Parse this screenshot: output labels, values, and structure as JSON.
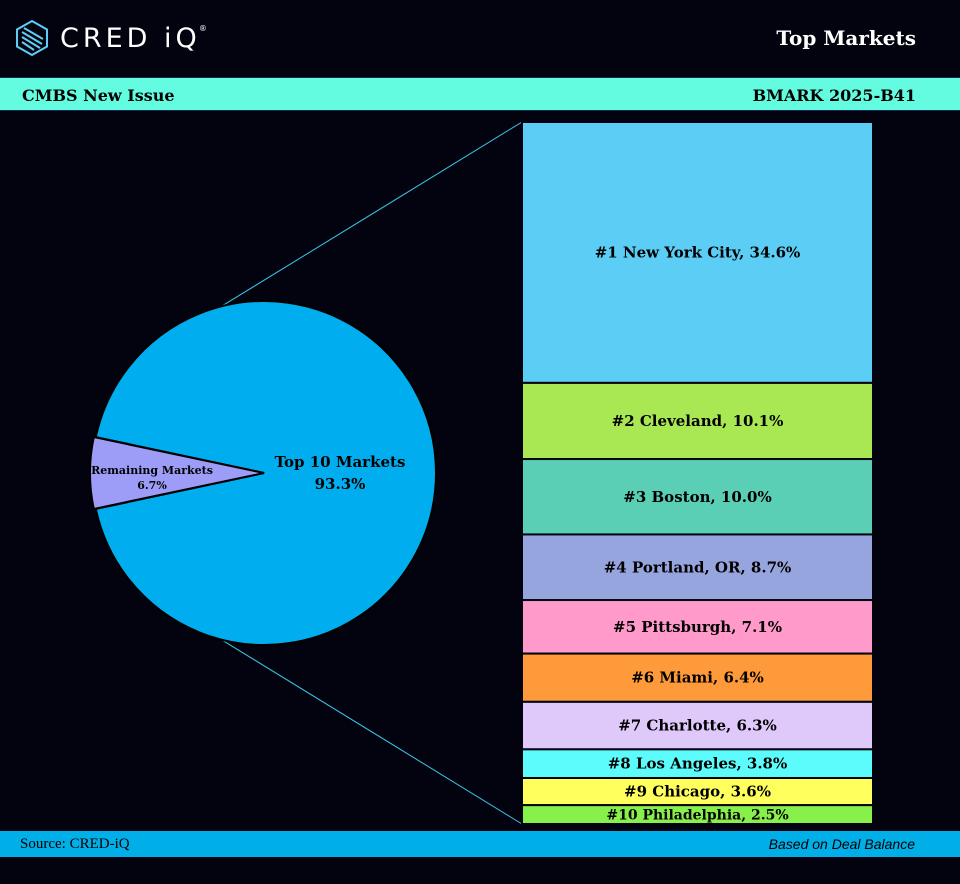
{
  "header": {
    "logo_text": "CRED iQ",
    "logo_reg": "®",
    "title": "Top Markets"
  },
  "band": {
    "left": "CMBS New Issue",
    "right": "BMARK 2025-B41"
  },
  "footer": {
    "source": "Source:  CRED-iQ",
    "note": "Based on Deal Balance"
  },
  "colors": {
    "background": "#03030f",
    "band": "#63fce0",
    "footer": "#00aee8",
    "pie_top10": "#00aeef",
    "pie_remaining": "#9d9cf7"
  },
  "chart_data": {
    "type": "bar-of-pie",
    "pie": [
      {
        "label": "Top 10 Markets",
        "value_label": "93.3%",
        "value": 93.3,
        "color": "#00aeef"
      },
      {
        "label": "Remaining Markets",
        "value_label": "6.7%",
        "value": 6.7,
        "color": "#9d9cf7"
      }
    ],
    "bar": [
      {
        "label": "#1 New York City, 34.6%",
        "value": 34.6,
        "color": "#5ccdf4"
      },
      {
        "label": "#2 Cleveland,  10.1%",
        "value": 10.1,
        "color": "#a9e853"
      },
      {
        "label": "#3 Boston, 10.0%",
        "value": 10.0,
        "color": "#5bcfb5"
      },
      {
        "label": "#4 Portland, OR, 8.7%",
        "value": 8.7,
        "color": "#97a5de"
      },
      {
        "label": "#5 Pittsburgh, 7.1%",
        "value": 7.1,
        "color": "#ff9acb"
      },
      {
        "label": "#6 Miami, 6.4%",
        "value": 6.4,
        "color": "#ff9a3a"
      },
      {
        "label": "#7 Charlotte, 6.3%",
        "value": 6.3,
        "color": "#dfc8fa"
      },
      {
        "label": "#8 Los Angeles, 3.8%",
        "value": 3.8,
        "color": "#5dfcfc"
      },
      {
        "label": "#9 Chicago, 3.6%",
        "value": 3.6,
        "color": "#ffff5e"
      },
      {
        "label": "#10 Philadelphia, 2.5%",
        "value": 2.5,
        "color": "#88f04a"
      }
    ]
  }
}
